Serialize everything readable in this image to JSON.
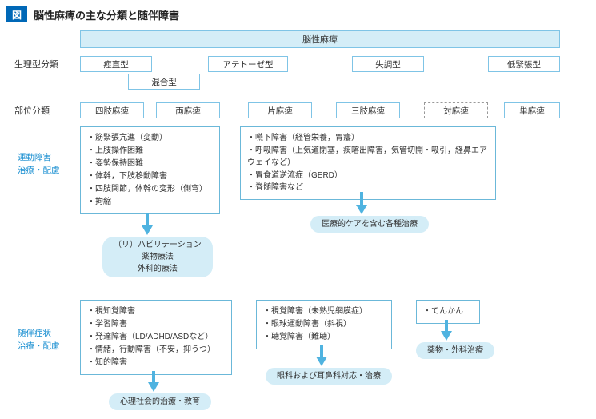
{
  "title": {
    "badge": "図",
    "text": "脳性麻痺の主な分類と随伴障害"
  },
  "root": "脳性麻痺",
  "rows": {
    "physio_label": "生理型分類",
    "region_label": "部位分類"
  },
  "physio_types": {
    "spastic": "痙直型",
    "athetoid": "アテトーゼ型",
    "ataxic": "失調型",
    "hypotonic": "低緊張型",
    "mixed": "混合型"
  },
  "region_types": {
    "quadriplegia": "四肢麻痺",
    "diplegia": "両麻痺",
    "hemiplegia": "片麻痺",
    "triplegia": "三肢麻痺",
    "paraplegia": "対麻痺",
    "monoplegia": "単麻痺"
  },
  "side_labels": {
    "motor": "運動障害\n治療・配慮",
    "assoc": "随伴症状\n治療・配慮"
  },
  "motor_box1": [
    "筋緊張亢進（変動）",
    "上肢操作困難",
    "姿勢保持困難",
    "体幹，下肢移動障害",
    "四肢関節，体幹の変形（側弯）",
    "拘縮"
  ],
  "motor_box2": [
    "嚥下障害（経管栄養，胃瘻）",
    "呼吸障害（上気道閉塞，痰喀出障害，気管切開・吸引，経鼻エアウェイなど）",
    "胃食道逆流症（GERD）",
    "脊髄障害など"
  ],
  "motor_treat1": "（リ）ハビリテーション\n薬物療法\n外科的療法",
  "motor_treat2": "医療的ケアを含む各種治療",
  "assoc_box1": [
    "視知覚障害",
    "学習障害",
    "発達障害（LD/ADHD/ASDなど）",
    "情緒，行動障害（不安，抑うつ）",
    "知的障害"
  ],
  "assoc_box2": [
    "視覚障害（未熟児網膜症）",
    "眼球運動障害（斜視）",
    "聴覚障害（難聴）"
  ],
  "assoc_box3": [
    "てんかん"
  ],
  "assoc_treat1": "心理社会的治療・教育",
  "assoc_treat2": "眼科および耳鼻科対応・治療",
  "assoc_treat3": "薬物・外科治療",
  "colors": {
    "accent": "#0068b7",
    "box_border": "#7fc4e6",
    "pill_bg": "#d4edf7",
    "arrow": "#4fb3e0",
    "side_label": "#1a8fd1"
  }
}
